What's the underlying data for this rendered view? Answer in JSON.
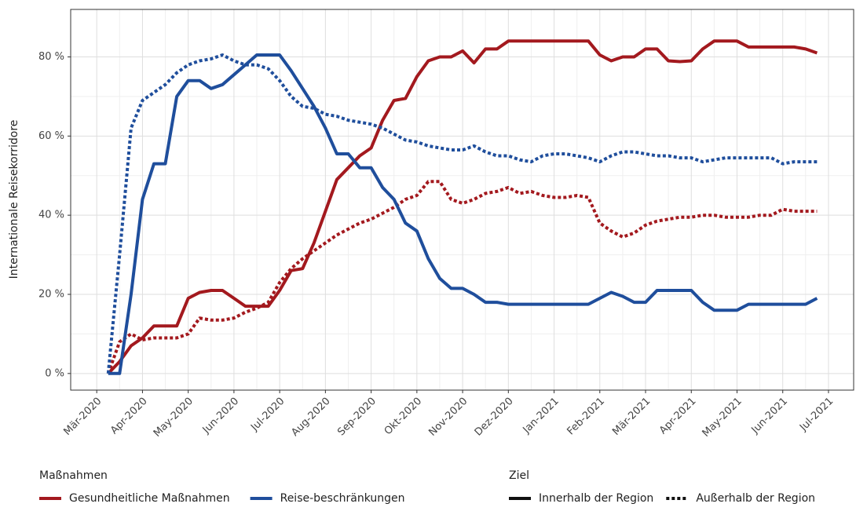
{
  "chart_data": {
    "type": "line",
    "y_label": "Internationale Reisekorridore",
    "legend_titles": {
      "color": "Maßnahmen",
      "linetype": "Ziel"
    },
    "legend_position": "bottom",
    "grid": true,
    "xlim": [
      -0.57,
      16.55
    ],
    "xticks": [
      {
        "value": 0,
        "label": "Mär-2020"
      },
      {
        "value": 1,
        "label": "Apr-2020"
      },
      {
        "value": 2,
        "label": "May-2020"
      },
      {
        "value": 3,
        "label": "Jun-2020"
      },
      {
        "value": 4,
        "label": "Jul-2020"
      },
      {
        "value": 5,
        "label": "Aug-2020"
      },
      {
        "value": 6,
        "label": "Sep-2020"
      },
      {
        "value": 7,
        "label": "Okt-2020"
      },
      {
        "value": 8,
        "label": "Nov-2020"
      },
      {
        "value": 9,
        "label": "Dez-2020"
      },
      {
        "value": 10,
        "label": "Jan-2021"
      },
      {
        "value": 11,
        "label": "Feb-2021"
      },
      {
        "value": 12,
        "label": "Mär-2021"
      },
      {
        "value": 13,
        "label": "Apr-2021"
      },
      {
        "value": 14,
        "label": "May-2021"
      },
      {
        "value": 15,
        "label": "Jun-2021"
      },
      {
        "value": 16,
        "label": "Jul-2021"
      }
    ],
    "ylim": [
      -4.2,
      92
    ],
    "yticks": [
      {
        "value": 0,
        "label": "0 %"
      },
      {
        "value": 20,
        "label": "20 %"
      },
      {
        "value": 40,
        "label": "40 %"
      },
      {
        "value": 60,
        "label": "60 %"
      },
      {
        "value": 80,
        "label": "80 %"
      }
    ],
    "linetypes": [
      {
        "name": "Innerhalb der Region",
        "dash": "solid"
      },
      {
        "name": "Außerhalb der Region",
        "dash": "dotted"
      }
    ],
    "x": [
      0.25,
      0.5,
      0.75,
      1,
      1.25,
      1.5,
      1.75,
      2,
      2.25,
      2.5,
      2.75,
      3,
      3.25,
      3.5,
      3.75,
      4,
      4.25,
      4.5,
      4.75,
      5,
      5.25,
      5.5,
      5.75,
      6,
      6.25,
      6.5,
      6.75,
      7,
      7.25,
      7.5,
      7.75,
      8,
      8.25,
      8.5,
      8.75,
      9,
      9.25,
      9.5,
      9.75,
      10,
      10.25,
      10.5,
      10.75,
      11,
      11.25,
      11.5,
      11.75,
      12,
      12.25,
      12.5,
      12.75,
      13,
      13.25,
      13.5,
      13.75,
      14,
      14.25,
      14.5,
      14.75,
      15,
      15.25,
      15.5,
      15.75
    ],
    "series": [
      {
        "name": "Gesundheitliche Maßnahmen",
        "color": "#a3191e",
        "values": [
          [
            0,
            3,
            7,
            9,
            12,
            12,
            12,
            19,
            20.5,
            21,
            21,
            19,
            17,
            17,
            17,
            21,
            26,
            26.5,
            33,
            41,
            49,
            52,
            55,
            57,
            64,
            69,
            69.5,
            75,
            79,
            80,
            80,
            81.5,
            78.5,
            82,
            82,
            84,
            84,
            84,
            84,
            84,
            84,
            84,
            84,
            80.5,
            79,
            80,
            80,
            82,
            82,
            79,
            78.8,
            79,
            82,
            84,
            84,
            84,
            82.5,
            82.5,
            82.5,
            82.5,
            82.5,
            82,
            81
          ],
          [
            0,
            8,
            10,
            8.5,
            9,
            9,
            9,
            10,
            14,
            13.5,
            13.5,
            14,
            15.5,
            16.5,
            18,
            23,
            26.5,
            29,
            31,
            33,
            35,
            36.5,
            38,
            39,
            40.5,
            42,
            44,
            45,
            48.5,
            48.5,
            44,
            43,
            44,
            45.5,
            46,
            47,
            45.5,
            46,
            45,
            44.5,
            44.5,
            45,
            44.5,
            38,
            36,
            34.5,
            35.5,
            37.5,
            38.5,
            39,
            39.5,
            39.5,
            40,
            40,
            39.5,
            39.5,
            39.5,
            40,
            40,
            41.5,
            41,
            41,
            41
          ]
        ]
      },
      {
        "name": "Reise-beschränkungen",
        "color": "#1f4e9c",
        "values": [
          [
            0,
            0,
            20,
            44,
            53,
            53,
            70,
            74,
            74,
            72,
            73,
            75.5,
            78,
            80.5,
            80.5,
            80.5,
            76.5,
            72,
            67.5,
            62,
            55.5,
            55.5,
            52,
            52,
            47,
            44,
            38,
            36,
            29,
            24,
            21.5,
            21.5,
            20,
            18,
            18,
            17.5,
            17.5,
            17.5,
            17.5,
            17.5,
            17.5,
            17.5,
            17.5,
            19,
            20.5,
            19.5,
            18,
            18,
            21,
            21,
            21,
            21,
            18,
            16,
            16,
            16,
            17.5,
            17.5,
            17.5,
            17.5,
            17.5,
            17.5,
            19
          ],
          [
            0,
            30,
            62,
            69,
            71,
            73,
            76,
            78,
            79,
            79.5,
            80.5,
            79,
            78,
            78,
            77,
            74,
            70,
            67.5,
            67,
            65.5,
            65,
            64,
            63.5,
            63,
            62,
            60.5,
            59,
            58.5,
            57.5,
            57,
            56.5,
            56.5,
            57.5,
            56,
            55,
            55,
            54,
            53.5,
            55,
            55.5,
            55.5,
            55,
            54.5,
            53.5,
            55,
            56,
            56,
            55.5,
            55,
            55,
            54.5,
            54.5,
            53.5,
            54,
            54.5,
            54.5,
            54.5,
            54.5,
            54.5,
            53,
            53.5,
            53.5,
            53.5
          ]
        ]
      }
    ]
  }
}
